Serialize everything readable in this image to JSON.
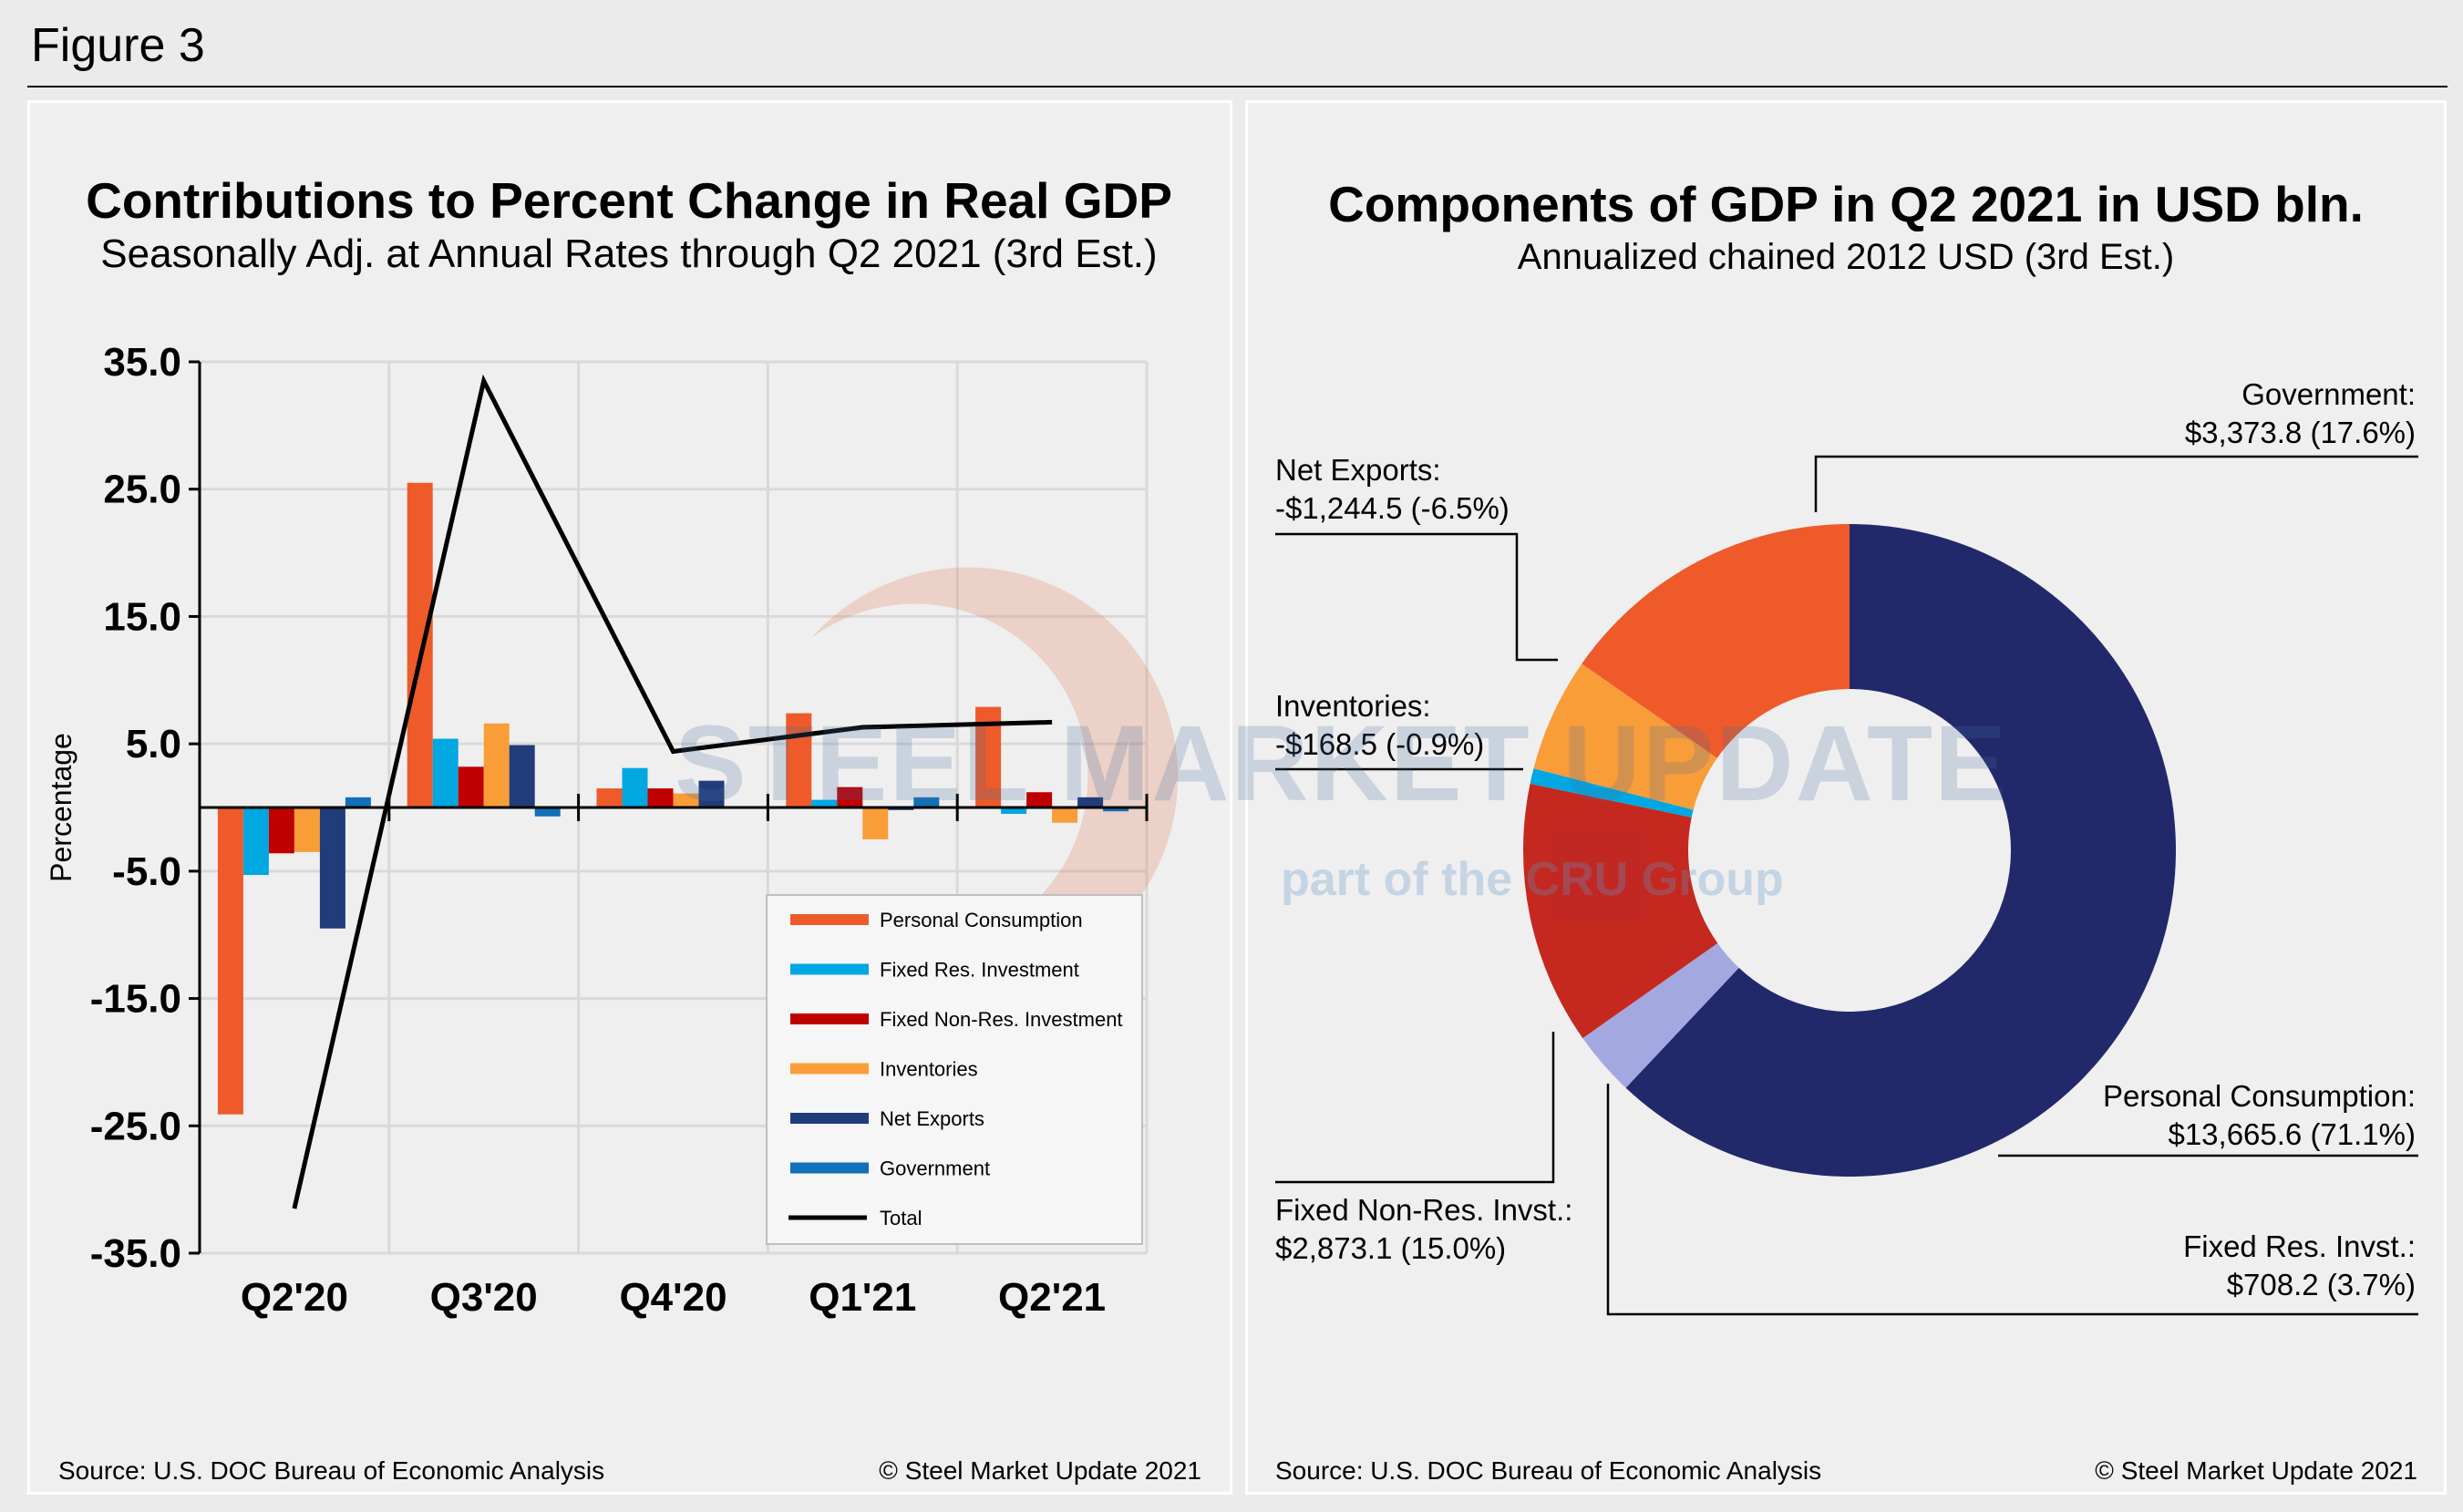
{
  "figure_label": "Figure 3",
  "watermark": {
    "brand": "STEEL MARKET UPDATE",
    "tagline": "part of the CRU Group"
  },
  "left_panel": {
    "title": "Contributions to Percent Change in Real GDP",
    "subtitle": "Seasonally Adj. at Annual Rates through Q2 2021 (3rd Est.)",
    "source": "Source: U.S. DOC Bureau of Economic Analysis",
    "copyright": "© Steel Market Update 2021"
  },
  "right_panel": {
    "title": "Components of GDP in Q2 2021 in USD bln.",
    "subtitle": "Annualized chained 2012 USD (3rd Est.)",
    "source": "Source: U.S. DOC Bureau of Economic Analysis",
    "copyright": "© Steel Market Update 2021"
  },
  "chart_data": [
    {
      "type": "bar",
      "title": "Contributions to Percent Change in Real GDP",
      "subtitle": "Seasonally Adj. at Annual Rates through Q2 2021 (3rd Est.)",
      "xlabel": "",
      "ylabel": "Percentage",
      "ylim": [
        -35,
        35
      ],
      "yticks": [
        "35.0",
        "25.0",
        "15.0",
        "5.0",
        "-5.0",
        "-15.0",
        "-25.0",
        "-35.0"
      ],
      "grid": true,
      "legend": "bottom-right",
      "categories": [
        "Q2'20",
        "Q3'20",
        "Q4'20",
        "Q1'21",
        "Q2'21"
      ],
      "series": [
        {
          "name": "Personal Consumption",
          "color": "#EE5A2A",
          "values": [
            -24.1,
            25.5,
            1.5,
            7.4,
            7.9
          ]
        },
        {
          "name": "Fixed Res. Investment",
          "color": "#00A7E1",
          "values": [
            -5.3,
            5.4,
            3.1,
            0.6,
            -0.5
          ]
        },
        {
          "name": "Fixed Non-Res. Investment",
          "color": "#C00000",
          "values": [
            -3.6,
            3.2,
            1.5,
            1.6,
            1.2
          ]
        },
        {
          "name": "Inventories",
          "color": "#F99D39",
          "values": [
            -3.5,
            6.6,
            1.1,
            -2.5,
            -1.2
          ]
        },
        {
          "name": "Net Exports",
          "color": "#213C7B",
          "values": [
            -9.5,
            4.9,
            2.1,
            -0.2,
            0.8
          ]
        },
        {
          "name": "Government",
          "color": "#1170B8",
          "values": [
            0.8,
            -0.7,
            0.0,
            0.8,
            -0.3
          ]
        },
        {
          "name": "Total",
          "type": "line",
          "color": "#000000",
          "values": [
            -31.5,
            33.5,
            4.4,
            6.3,
            6.7
          ]
        }
      ]
    },
    {
      "type": "pie",
      "title": "Components of GDP in Q2 2021 in USD bln.",
      "subtitle": "Annualized chained 2012 USD (3rd Est.)",
      "donut": true,
      "slices": [
        {
          "name": "Personal Consumption:",
          "value": 13665.6,
          "label": "$13,665.6 (71.1%)",
          "color": "#21296B"
        },
        {
          "name": "Fixed Res. Invst.:",
          "value": 708.2,
          "label": "$708.2 (3.7%)",
          "color": "#A3A9E0"
        },
        {
          "name": "Fixed Non-Res. Invst.:",
          "value": 2873.1,
          "label": "$2,873.1 (15.0%)",
          "color": "#C5281E"
        },
        {
          "name": "Inventories:",
          "value": -168.5,
          "label": "-$168.5 (-0.9%)",
          "color": "#00A7E1"
        },
        {
          "name": "Net Exports:",
          "value": -1244.5,
          "label": "-$1,244.5 (-6.5%)",
          "color": "#F99D39"
        },
        {
          "name": "Government:",
          "value": 3373.8,
          "label": "$3,373.8 (17.6%)",
          "color": "#EE5A2A"
        }
      ]
    }
  ]
}
